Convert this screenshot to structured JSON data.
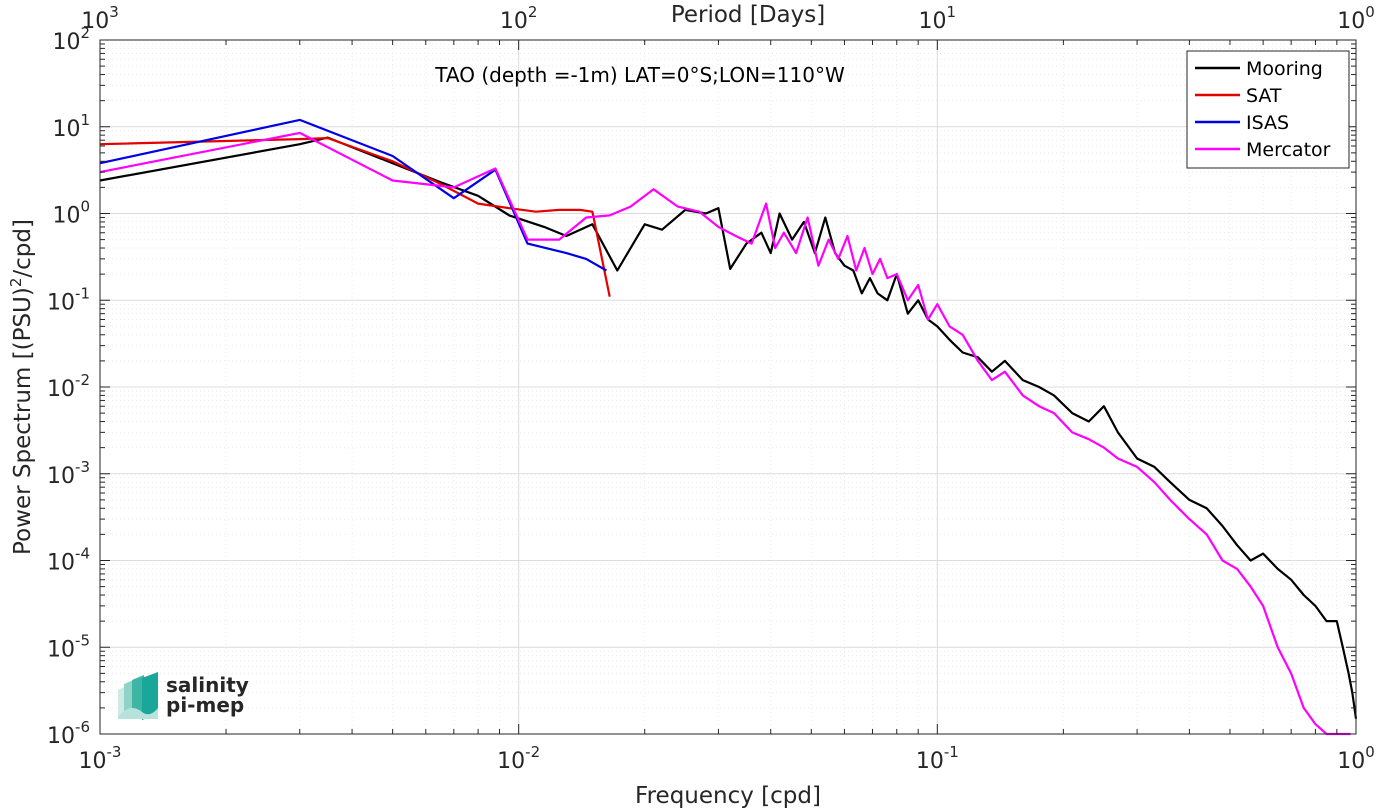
{
  "colors": {
    "mooring": "#000000",
    "sat": "#e50000",
    "isas": "#0000e6",
    "mercator": "#ff00ff",
    "grid_major": "#dcdcdc",
    "grid_minor": "#ececec",
    "axis": "#262626",
    "logo": "#1aa79a"
  },
  "logo": {
    "line1": "salinity",
    "line2": "pi-mep",
    "icon": "salinity-logo-icon"
  },
  "chart_data": {
    "type": "line",
    "title": "TAO (depth =-1m) LAT=0°S;LON=110°W",
    "xlabel": "Frequency [cpd]",
    "ylabel": "Power Spectrum [(PSU)²/cpd]",
    "top_xlabel": "Period [Days]",
    "xscale": "log",
    "yscale": "log",
    "xlim": [
      0.001,
      1
    ],
    "ylim": [
      1e-06,
      100
    ],
    "grid": true,
    "legend_position": "top-right",
    "x_ticks": [
      {
        "base": "10",
        "exp": "-3"
      },
      {
        "base": "10",
        "exp": "-2"
      },
      {
        "base": "10",
        "exp": "-1"
      },
      {
        "base": "10",
        "exp": "0"
      }
    ],
    "top_ticks": [
      {
        "base": "10",
        "exp": "3"
      },
      {
        "base": "10",
        "exp": "2"
      },
      {
        "base": "10",
        "exp": "1"
      },
      {
        "base": "10",
        "exp": "0"
      }
    ],
    "y_ticks": [
      {
        "base": "10",
        "exp": "-6"
      },
      {
        "base": "10",
        "exp": "-5"
      },
      {
        "base": "10",
        "exp": "-4"
      },
      {
        "base": "10",
        "exp": "-3"
      },
      {
        "base": "10",
        "exp": "-2"
      },
      {
        "base": "10",
        "exp": "-1"
      },
      {
        "base": "10",
        "exp": "0"
      },
      {
        "base": "10",
        "exp": "1"
      },
      {
        "base": "10",
        "exp": "2"
      }
    ],
    "series": [
      {
        "name": "Mooring",
        "color_key": "mooring",
        "x": [
          0.001,
          0.003,
          0.0035,
          0.005,
          0.0065,
          0.008,
          0.0095,
          0.0115,
          0.013,
          0.015,
          0.0172,
          0.02,
          0.022,
          0.025,
          0.028,
          0.03,
          0.032,
          0.035,
          0.038,
          0.04,
          0.042,
          0.045,
          0.048,
          0.051,
          0.054,
          0.057,
          0.06,
          0.063,
          0.066,
          0.069,
          0.072,
          0.076,
          0.08,
          0.085,
          0.09,
          0.095,
          0.1,
          0.107,
          0.115,
          0.125,
          0.135,
          0.145,
          0.16,
          0.175,
          0.19,
          0.21,
          0.23,
          0.25,
          0.27,
          0.3,
          0.33,
          0.36,
          0.4,
          0.44,
          0.48,
          0.52,
          0.56,
          0.6,
          0.65,
          0.7,
          0.75,
          0.8,
          0.85,
          0.9,
          0.93,
          0.96,
          0.98,
          1.0
        ],
        "y": [
          2.4,
          6.3,
          7.5,
          3.8,
          2.3,
          1.6,
          0.95,
          0.7,
          0.55,
          0.75,
          0.22,
          0.75,
          0.65,
          1.1,
          1.0,
          1.15,
          0.23,
          0.45,
          0.6,
          0.35,
          1.0,
          0.5,
          0.8,
          0.35,
          0.9,
          0.35,
          0.25,
          0.22,
          0.12,
          0.18,
          0.12,
          0.1,
          0.2,
          0.07,
          0.1,
          0.06,
          0.05,
          0.035,
          0.025,
          0.022,
          0.015,
          0.02,
          0.012,
          0.01,
          0.008,
          0.005,
          0.004,
          0.006,
          0.003,
          0.0015,
          0.0012,
          0.0008,
          0.0005,
          0.0004,
          0.00025,
          0.00015,
          0.0001,
          0.00012,
          8e-05,
          6e-05,
          4e-05,
          3e-05,
          2e-05,
          2e-05,
          1e-05,
          5e-06,
          3e-06,
          1.5e-06
        ]
      },
      {
        "name": "SAT",
        "color_key": "sat",
        "x": [
          0.001,
          0.003,
          0.0035,
          0.005,
          0.0065,
          0.008,
          0.0095,
          0.011,
          0.0125,
          0.014,
          0.015,
          0.0165
        ],
        "y": [
          6.3,
          7.2,
          7.4,
          4.0,
          2.2,
          1.3,
          1.15,
          1.05,
          1.1,
          1.1,
          1.05,
          0.11
        ]
      },
      {
        "name": "ISAS",
        "color_key": "isas",
        "x": [
          0.001,
          0.003,
          0.005,
          0.007,
          0.0088,
          0.0105,
          0.013,
          0.0145,
          0.0162
        ],
        "y": [
          3.8,
          12.0,
          4.6,
          1.5,
          3.2,
          0.45,
          0.35,
          0.3,
          0.22
        ]
      },
      {
        "name": "Mercator",
        "color_key": "mercator",
        "x": [
          0.001,
          0.003,
          0.005,
          0.007,
          0.0088,
          0.0105,
          0.0125,
          0.0145,
          0.0165,
          0.0185,
          0.021,
          0.024,
          0.027,
          0.03,
          0.033,
          0.036,
          0.039,
          0.041,
          0.043,
          0.046,
          0.049,
          0.052,
          0.055,
          0.058,
          0.061,
          0.064,
          0.067,
          0.07,
          0.073,
          0.076,
          0.08,
          0.085,
          0.09,
          0.095,
          0.1,
          0.107,
          0.115,
          0.125,
          0.135,
          0.145,
          0.16,
          0.175,
          0.19,
          0.21,
          0.23,
          0.25,
          0.27,
          0.3,
          0.33,
          0.36,
          0.4,
          0.44,
          0.48,
          0.52,
          0.56,
          0.6,
          0.65,
          0.7,
          0.75,
          0.8,
          0.85,
          0.88,
          0.91,
          0.93,
          0.95,
          0.97
        ],
        "y": [
          3.0,
          8.5,
          2.4,
          2.0,
          3.3,
          0.5,
          0.5,
          0.9,
          0.95,
          1.2,
          1.9,
          1.2,
          1.05,
          0.7,
          0.55,
          0.45,
          1.3,
          0.4,
          0.6,
          0.35,
          0.9,
          0.25,
          0.5,
          0.3,
          0.55,
          0.22,
          0.4,
          0.2,
          0.3,
          0.18,
          0.2,
          0.1,
          0.15,
          0.06,
          0.09,
          0.05,
          0.04,
          0.02,
          0.012,
          0.015,
          0.008,
          0.006,
          0.005,
          0.003,
          0.0025,
          0.002,
          0.0015,
          0.0012,
          0.0008,
          0.0005,
          0.0003,
          0.0002,
          0.0001,
          8e-05,
          5e-05,
          3e-05,
          1e-05,
          5e-06,
          2e-06,
          1.3e-06,
          1e-06,
          1e-06,
          1e-06,
          1e-06,
          1e-06,
          1e-06
        ]
      }
    ]
  }
}
